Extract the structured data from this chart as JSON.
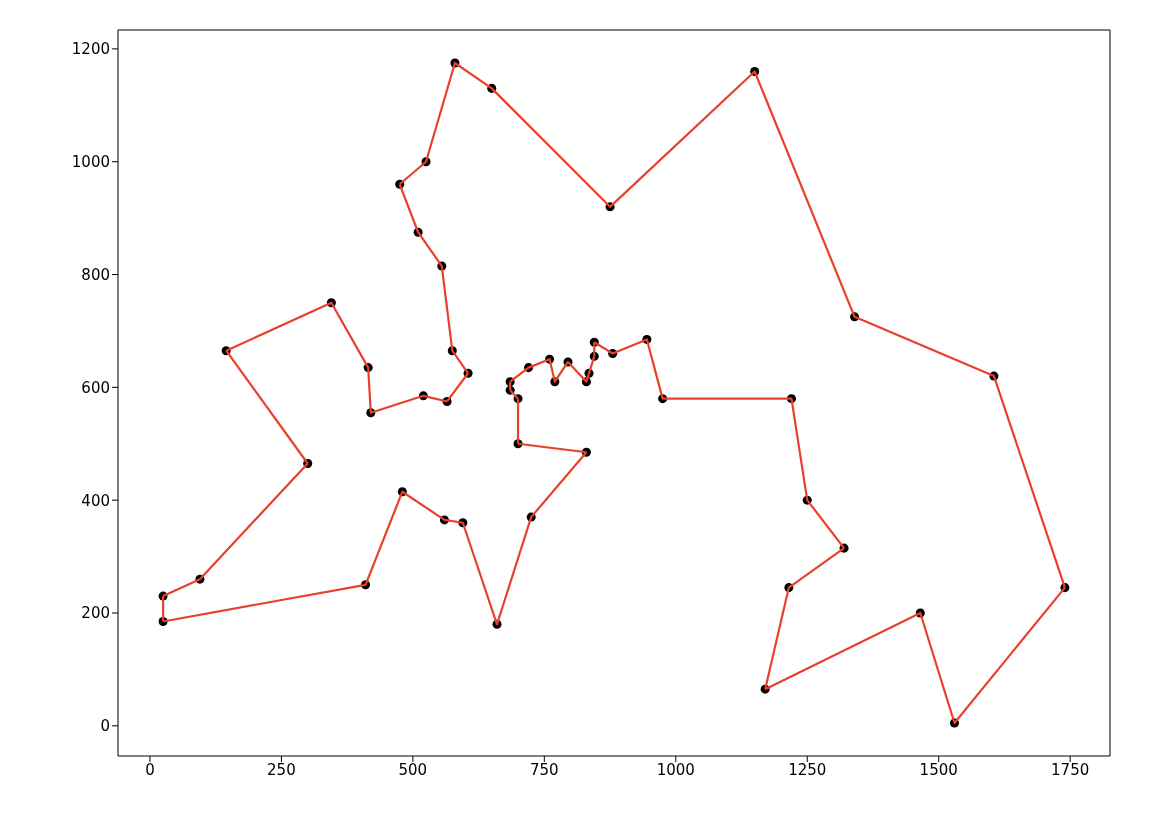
{
  "chart_data": {
    "type": "scatter",
    "xlim": [
      -60.75,
      1825.75
    ],
    "ylim": [
      -53.5,
      1233.5
    ],
    "xticks": [
      0,
      250,
      500,
      750,
      1000,
      1250,
      1500,
      1750
    ],
    "yticks": [
      0,
      200,
      400,
      600,
      800,
      1000,
      1200
    ],
    "grid": false,
    "series": [
      {
        "color": "#000000",
        "marker": "circle",
        "x": [
          565,
          25,
          345,
          945,
          845,
          880,
          25,
          525,
          580,
          650,
          1605,
          1220,
          1465,
          1530,
          845,
          725,
          145,
          415,
          510,
          560,
          300,
          520,
          480,
          835,
          975,
          1215,
          1320,
          1250,
          660,
          410,
          420,
          575,
          1150,
          700,
          685,
          685,
          770,
          795,
          720,
          760,
          475,
          95,
          875,
          700,
          555,
          830,
          1170,
          830,
          605,
          595,
          1340,
          1740
        ],
        "values": [
          575,
          185,
          750,
          685,
          655,
          660,
          230,
          1000,
          1175,
          1130,
          620,
          580,
          200,
          5,
          680,
          370,
          665,
          635,
          875,
          365,
          465,
          585,
          415,
          625,
          580,
          245,
          315,
          400,
          180,
          250,
          555,
          665,
          1160,
          580,
          595,
          610,
          610,
          645,
          635,
          650,
          960,
          260,
          920,
          500,
          815,
          485,
          65,
          610,
          625,
          360,
          725,
          245
        ]
      },
      {
        "type": "line",
        "color": "#e8412b",
        "x": [
          565,
          605
        ],
        "values": [
          575,
          625
        ]
      },
      {
        "type": "line",
        "color": "#e8412b",
        "x": [
          605,
          575,
          555,
          510,
          475
        ],
        "values": [
          625,
          665,
          815,
          875,
          960
        ]
      },
      {
        "type": "line",
        "color": "#e8412b",
        "x": [
          475,
          525,
          580,
          650,
          875,
          1150,
          1340,
          1605,
          1740
        ],
        "values": [
          960,
          1000,
          1175,
          1130,
          920,
          1160,
          725,
          620,
          245
        ]
      },
      {
        "type": "line",
        "color": "#e8412b",
        "x": [
          1740,
          1530,
          1465,
          1170
        ],
        "values": [
          245,
          5,
          200,
          65
        ]
      },
      {
        "type": "line",
        "color": "#e8412b",
        "x": [
          1170,
          1215,
          1320
        ],
        "values": [
          65,
          245,
          315
        ]
      },
      {
        "type": "line",
        "color": "#e8412b",
        "x": [
          1320,
          1250,
          1220,
          975,
          945,
          880,
          845
        ],
        "values": [
          315,
          400,
          580,
          580,
          685,
          660,
          680
        ]
      },
      {
        "type": "line",
        "color": "#e8412b",
        "x": [
          845,
          845
        ],
        "values": [
          680,
          655
        ]
      },
      {
        "type": "line",
        "color": "#e8412b",
        "x": [
          845,
          835,
          830,
          795,
          770,
          760,
          720,
          685
        ],
        "values": [
          655,
          625,
          610,
          645,
          610,
          650,
          635,
          610
        ]
      },
      {
        "type": "line",
        "color": "#e8412b",
        "x": [
          685,
          685
        ],
        "values": [
          610,
          595
        ]
      },
      {
        "type": "line",
        "color": "#e8412b",
        "x": [
          685,
          700
        ],
        "values": [
          595,
          580
        ]
      },
      {
        "type": "line",
        "color": "#e8412b",
        "x": [
          700,
          700
        ],
        "values": [
          580,
          500
        ]
      },
      {
        "type": "line",
        "color": "#e8412b",
        "x": [
          700,
          830
        ],
        "values": [
          500,
          485
        ]
      },
      {
        "type": "line",
        "color": "#e8412b",
        "x": [
          830,
          725,
          660,
          595,
          560,
          480,
          410,
          25
        ],
        "values": [
          485,
          370,
          180,
          360,
          365,
          415,
          250,
          185
        ]
      },
      {
        "type": "line",
        "color": "#e8412b",
        "x": [
          25,
          25
        ],
        "values": [
          185,
          230
        ]
      },
      {
        "type": "line",
        "color": "#e8412b",
        "x": [
          25,
          95,
          300
        ],
        "values": [
          230,
          260,
          465
        ]
      },
      {
        "type": "line",
        "color": "#e8412b",
        "x": [
          300,
          145
        ],
        "values": [
          465,
          665
        ]
      },
      {
        "type": "line",
        "color": "#e8412b",
        "x": [
          145,
          345,
          415,
          420,
          520,
          565
        ],
        "values": [
          665,
          750,
          635,
          555,
          585,
          575
        ]
      }
    ]
  }
}
